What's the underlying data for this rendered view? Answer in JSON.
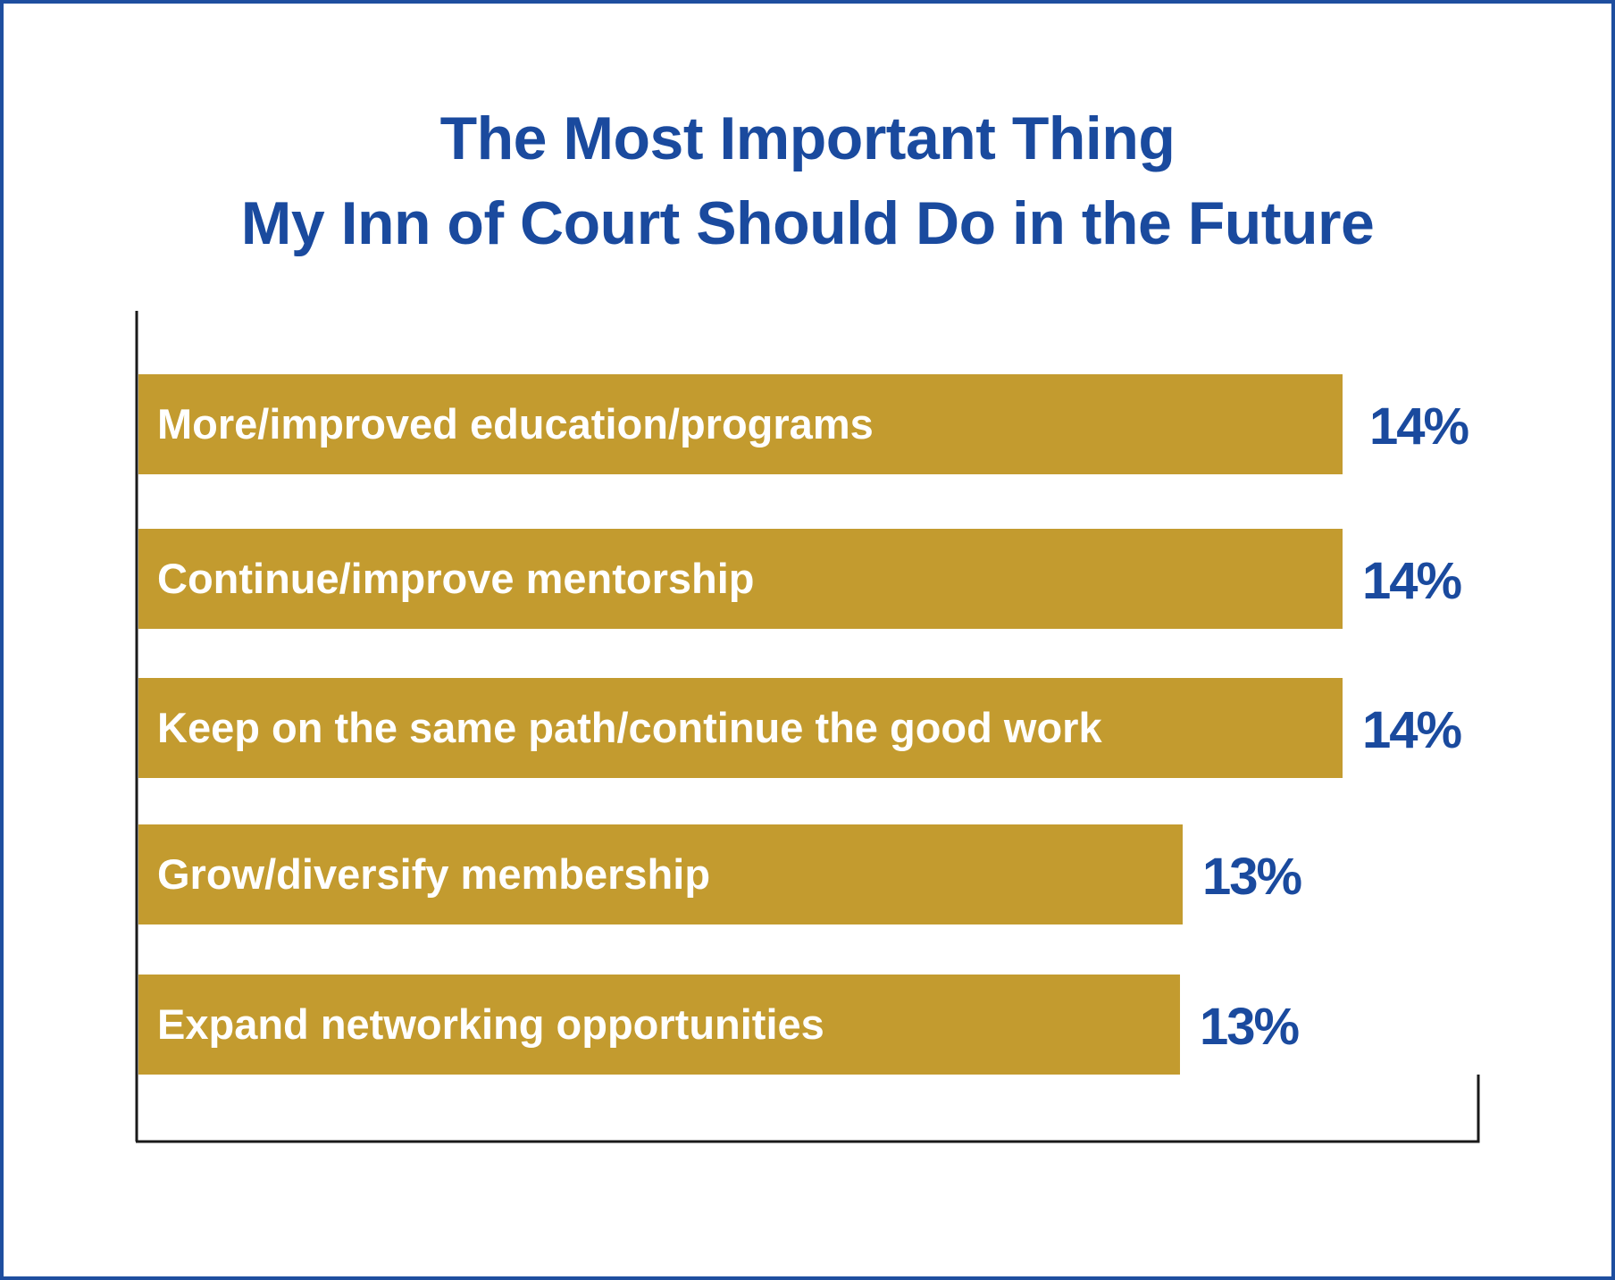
{
  "chart_data": {
    "type": "bar",
    "orientation": "horizontal",
    "title": "The Most Important Thing My Inn of Court Should Do in the Future",
    "title_lines": [
      "The Most Important Thing",
      "My Inn of Court Should Do in the Future"
    ],
    "categories": [
      "More/improved education/programs",
      "Continue/improve mentorship",
      "Keep on the same path/continue the good work",
      "Grow/diversify membership",
      "Expand networking opportunities"
    ],
    "values": [
      14,
      14,
      14,
      13,
      13
    ],
    "value_labels": [
      "14%",
      "14%",
      "14%",
      "13%",
      "13%"
    ],
    "unit": "%",
    "xlim": [
      0,
      15.6
    ],
    "grid": false,
    "legend": "none"
  },
  "colors": {
    "bar": "#c39b2f",
    "value_text": "#1a4a9e",
    "title_text": "#1a4a9e",
    "bar_text": "#ffffff",
    "frame": "#1e4e9f",
    "axis": "#1a1a1a"
  }
}
